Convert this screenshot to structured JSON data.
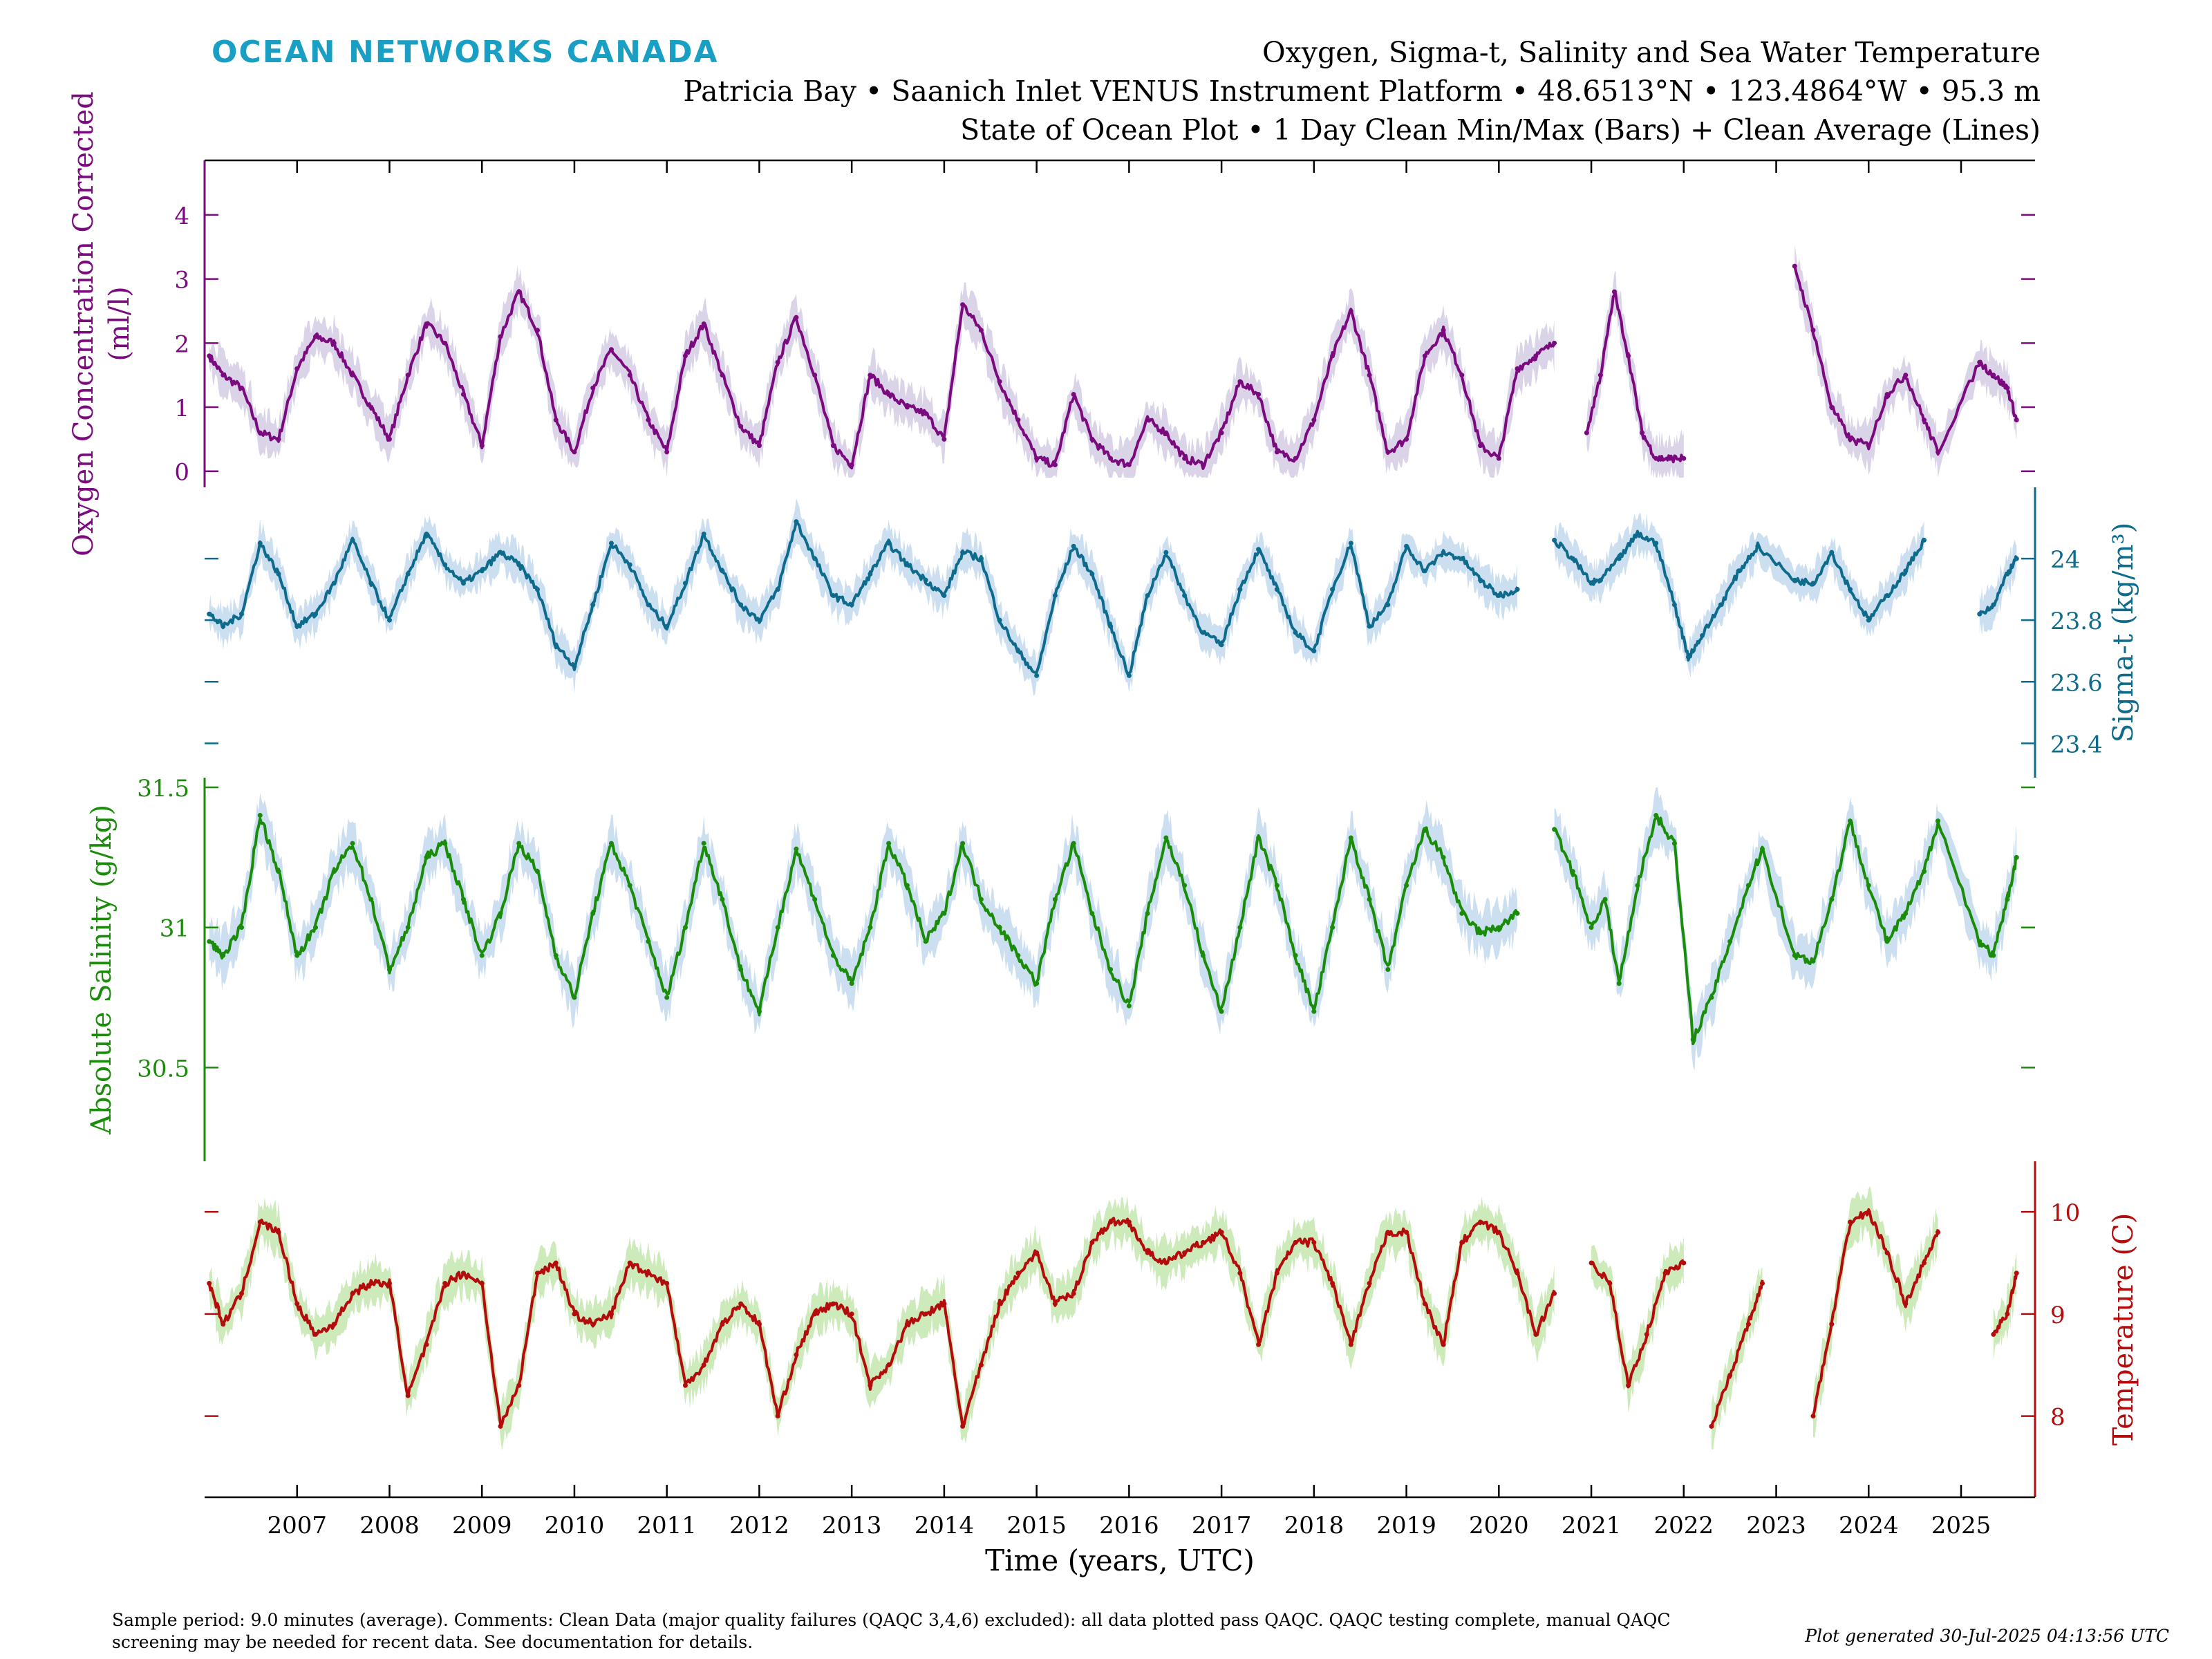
{
  "brand": {
    "name": "OCEAN NETWORKS CANADA",
    "color": "#1a9fc4"
  },
  "titles": {
    "line1": "Oxygen, Sigma-t, Salinity and Sea Water Temperature",
    "line2": "Patricia Bay • Saanich Inlet VENUS Instrument Platform • 48.6513°N • 123.4864°W • 95.3 m",
    "line3": "State of Ocean Plot • 1 Day Clean Min/Max (Bars) + Clean Average (Lines)"
  },
  "footer": {
    "comments": "Sample period: 9.0 minutes (average). Comments: Clean Data (major quality failures (QAQC 3,4,6) excluded): all data plotted pass QAQC. QAQC testing complete, manual QAQC screening may be needed for recent data. See documentation for details.",
    "generated": "Plot generated 30-Jul-2025 04:13:56 UTC"
  },
  "chart_data": {
    "type": "line",
    "xlabel": "Time (years, UTC)",
    "xlim": [
      2006.0,
      2025.8
    ],
    "x_ticks": [
      "2007",
      "2008",
      "2009",
      "2010",
      "2011",
      "2012",
      "2013",
      "2014",
      "2015",
      "2016",
      "2017",
      "2018",
      "2019",
      "2020",
      "2021",
      "2022",
      "2023",
      "2024",
      "2025"
    ],
    "panels": [
      {
        "name": "Oxygen Concentration Corrected",
        "ylabel": "Oxygen Concentration Corrected\n(ml/l)",
        "axis_side": "left",
        "color": "#7a0a7e",
        "band_color": "#d7cfe6",
        "ylim": [
          -0.1,
          4.7
        ],
        "yticks": [
          "0",
          "1",
          "2",
          "3",
          "4"
        ],
        "x": [
          2006.05,
          2006.2,
          2006.4,
          2006.6,
          2006.8,
          2007.0,
          2007.2,
          2007.4,
          2007.6,
          2007.8,
          2008.0,
          2008.2,
          2008.4,
          2008.6,
          2008.8,
          2009.0,
          2009.2,
          2009.4,
          2009.6,
          2009.8,
          2010.0,
          2010.2,
          2010.4,
          2010.6,
          2010.8,
          2011.0,
          2011.2,
          2011.4,
          2011.6,
          2011.8,
          2012.0,
          2012.2,
          2012.4,
          2012.6,
          2012.8,
          2013.0,
          2013.2,
          2013.4,
          2013.6,
          2013.8,
          2014.0,
          2014.2,
          2014.4,
          2014.6,
          2014.8,
          2015.0,
          2015.2,
          2015.4,
          2015.6,
          2015.8,
          2016.0,
          2016.2,
          2016.4,
          2016.6,
          2016.8,
          2017.0,
          2017.2,
          2017.4,
          2017.6,
          2017.8,
          2018.0,
          2018.2,
          2018.4,
          2018.6,
          2018.8,
          2019.0,
          2019.2,
          2019.4,
          2019.6,
          2019.8,
          2020.0,
          2020.2,
          2020.4,
          2020.6,
          2020.8,
          2020.95,
          2021.1,
          2021.25,
          2021.4,
          2021.55,
          2021.7,
          2021.85,
          2022.0,
          2022.15,
          2023.2,
          2023.4,
          2023.6,
          2023.8,
          2024.0,
          2024.2,
          2024.4,
          2024.6,
          2024.75,
          2025.2,
          2025.35,
          2025.5,
          2025.6
        ],
        "values": [
          1.8,
          1.5,
          1.3,
          0.6,
          0.5,
          1.6,
          2.1,
          2.0,
          1.5,
          1.0,
          0.5,
          1.5,
          2.3,
          2.0,
          1.2,
          0.4,
          2.1,
          2.8,
          2.2,
          0.8,
          0.3,
          1.3,
          1.9,
          1.5,
          0.8,
          0.3,
          1.8,
          2.3,
          1.5,
          0.7,
          0.4,
          1.7,
          2.4,
          1.5,
          0.4,
          0.1,
          1.5,
          1.2,
          1.0,
          0.9,
          0.5,
          2.6,
          2.2,
          1.4,
          0.8,
          0.2,
          0.1,
          1.2,
          0.5,
          0.2,
          0.1,
          0.8,
          0.6,
          0.2,
          0.1,
          0.6,
          1.4,
          1.2,
          0.3,
          0.2,
          0.8,
          1.8,
          2.5,
          1.5,
          0.3,
          0.5,
          1.8,
          2.2,
          1.5,
          0.4,
          0.2,
          1.6,
          1.8,
          2.0,
          null,
          0.6,
          1.5,
          2.8,
          1.8,
          0.6,
          0.2,
          0.2,
          0.2,
          null,
          3.2,
          2.2,
          1.0,
          0.5,
          0.4,
          1.2,
          1.5,
          0.8,
          0.3,
          1.7,
          1.5,
          1.3,
          0.8
        ]
      },
      {
        "name": "Sigma-t",
        "ylabel": "Sigma-t (kg/m³)",
        "axis_side": "right",
        "color": "#0e6b8c",
        "band_color": "#c6dcf0",
        "ylim": [
          23.32,
          24.2
        ],
        "yticks": [
          "23.4",
          "23.6",
          "23.8",
          "24"
        ],
        "x": [
          2006.05,
          2006.2,
          2006.4,
          2006.6,
          2006.8,
          2007.0,
          2007.2,
          2007.4,
          2007.6,
          2007.8,
          2008.0,
          2008.2,
          2008.4,
          2008.6,
          2008.8,
          2009.0,
          2009.2,
          2009.4,
          2009.6,
          2009.8,
          2010.0,
          2010.2,
          2010.4,
          2010.6,
          2010.8,
          2011.0,
          2011.2,
          2011.4,
          2011.6,
          2011.8,
          2012.0,
          2012.2,
          2012.4,
          2012.6,
          2012.8,
          2013.0,
          2013.2,
          2013.4,
          2013.6,
          2013.8,
          2014.0,
          2014.2,
          2014.4,
          2014.6,
          2014.8,
          2015.0,
          2015.2,
          2015.4,
          2015.6,
          2015.8,
          2016.0,
          2016.2,
          2016.4,
          2016.6,
          2016.8,
          2017.0,
          2017.2,
          2017.4,
          2017.6,
          2017.8,
          2018.0,
          2018.2,
          2018.4,
          2018.6,
          2018.8,
          2019.0,
          2019.2,
          2019.4,
          2019.6,
          2019.8,
          2020.0,
          2020.2,
          2020.4,
          2020.6,
          2020.8,
          2021.0,
          2021.1,
          2021.3,
          2021.5,
          2021.7,
          2021.9,
          2022.05,
          2022.2,
          2022.4,
          2022.6,
          2022.8,
          2023.2,
          2023.4,
          2023.6,
          2023.8,
          2024.0,
          2024.2,
          2024.4,
          2024.6,
          2024.75,
          2025.2,
          2025.35,
          2025.5,
          2025.6
        ],
        "values": [
          23.82,
          23.78,
          23.82,
          24.05,
          23.95,
          23.78,
          23.82,
          23.92,
          24.06,
          23.92,
          23.8,
          23.95,
          24.08,
          23.98,
          23.92,
          23.96,
          24.02,
          23.98,
          23.9,
          23.72,
          23.65,
          23.85,
          24.05,
          23.98,
          23.85,
          23.78,
          23.92,
          24.08,
          23.96,
          23.85,
          23.8,
          23.9,
          24.12,
          24.0,
          23.88,
          23.85,
          23.95,
          24.05,
          23.98,
          23.93,
          23.88,
          24.02,
          24.0,
          23.8,
          23.7,
          23.62,
          23.88,
          24.04,
          23.95,
          23.78,
          23.62,
          23.88,
          24.02,
          23.88,
          23.76,
          23.72,
          23.9,
          24.03,
          23.9,
          23.76,
          23.7,
          23.9,
          24.05,
          23.78,
          23.85,
          24.04,
          23.96,
          24.02,
          24.0,
          23.93,
          23.88,
          23.9,
          null,
          24.06,
          24.0,
          23.92,
          23.93,
          24.0,
          24.08,
          24.05,
          23.85,
          23.68,
          23.75,
          23.85,
          23.96,
          24.04,
          23.93,
          23.92,
          24.02,
          23.9,
          23.8,
          23.88,
          23.96,
          24.06,
          null,
          23.82,
          23.85,
          23.95,
          24.0
        ],
        "note": "gaps in the series appear as breaks"
      },
      {
        "name": "Absolute Salinity",
        "ylabel": "Absolute Salinity (g/kg)",
        "axis_side": "left",
        "color": "#1a8c0a",
        "band_color": "#c6dcf0",
        "ylim": [
          30.2,
          31.5
        ],
        "yticks": [
          "30.5",
          "31",
          "31.5"
        ],
        "x": [
          2006.05,
          2006.2,
          2006.4,
          2006.6,
          2006.8,
          2007.0,
          2007.2,
          2007.4,
          2007.6,
          2007.8,
          2008.0,
          2008.2,
          2008.4,
          2008.6,
          2008.8,
          2009.0,
          2009.2,
          2009.4,
          2009.6,
          2009.8,
          2010.0,
          2010.2,
          2010.4,
          2010.6,
          2010.8,
          2011.0,
          2011.2,
          2011.4,
          2011.6,
          2011.8,
          2012.0,
          2012.2,
          2012.4,
          2012.6,
          2012.8,
          2013.0,
          2013.2,
          2013.4,
          2013.6,
          2013.8,
          2014.0,
          2014.2,
          2014.4,
          2014.6,
          2014.8,
          2015.0,
          2015.2,
          2015.4,
          2015.6,
          2015.8,
          2016.0,
          2016.2,
          2016.4,
          2016.6,
          2016.8,
          2017.0,
          2017.2,
          2017.4,
          2017.6,
          2017.8,
          2018.0,
          2018.2,
          2018.4,
          2018.6,
          2018.8,
          2019.0,
          2019.2,
          2019.4,
          2019.6,
          2019.8,
          2020.0,
          2020.2,
          2020.4,
          2020.6,
          2020.8,
          2021.0,
          2021.15,
          2021.3,
          2021.5,
          2021.7,
          2021.9,
          2022.1,
          2022.3,
          2022.5,
          2022.7,
          2022.85,
          2023.2,
          2023.4,
          2023.6,
          2023.8,
          2024.0,
          2024.2,
          2024.4,
          2024.6,
          2024.75,
          2025.2,
          2025.35,
          2025.5,
          2025.6
        ],
        "values": [
          30.95,
          30.9,
          31.0,
          31.4,
          31.2,
          30.9,
          31.0,
          31.2,
          31.3,
          31.1,
          30.85,
          31.0,
          31.25,
          31.3,
          31.1,
          30.9,
          31.05,
          31.3,
          31.2,
          30.9,
          30.75,
          31.05,
          31.3,
          31.15,
          30.95,
          30.75,
          31.0,
          31.3,
          31.1,
          30.85,
          30.7,
          31.0,
          31.28,
          31.1,
          30.9,
          30.8,
          31.0,
          31.3,
          31.15,
          30.95,
          31.05,
          31.3,
          31.1,
          31.0,
          30.9,
          30.8,
          31.1,
          31.3,
          31.05,
          30.85,
          30.72,
          31.05,
          31.32,
          31.15,
          30.9,
          30.7,
          31.0,
          31.32,
          31.15,
          30.9,
          30.7,
          31.0,
          31.32,
          31.1,
          30.85,
          31.15,
          31.35,
          31.25,
          31.05,
          30.98,
          31.0,
          31.05,
          null,
          31.35,
          31.2,
          31.0,
          31.1,
          30.8,
          31.15,
          31.4,
          31.3,
          30.6,
          30.75,
          30.95,
          31.15,
          31.28,
          30.9,
          30.88,
          31.1,
          31.38,
          31.15,
          30.95,
          31.05,
          31.2,
          31.38,
          30.95,
          30.9,
          31.1,
          31.25
        ]
      },
      {
        "name": "Temperature",
        "ylabel": "Temperature (C)",
        "axis_side": "right",
        "color": "#b40c0c",
        "band_color": "#c8e8b4",
        "ylim": [
          7.3,
          10.4
        ],
        "yticks": [
          "8",
          "9",
          "10"
        ],
        "x": [
          2006.05,
          2006.2,
          2006.4,
          2006.6,
          2006.8,
          2007.0,
          2007.2,
          2007.4,
          2007.6,
          2007.8,
          2008.0,
          2008.2,
          2008.4,
          2008.6,
          2008.8,
          2009.0,
          2009.2,
          2009.4,
          2009.6,
          2009.8,
          2010.0,
          2010.2,
          2010.4,
          2010.6,
          2010.8,
          2011.0,
          2011.2,
          2011.4,
          2011.6,
          2011.8,
          2012.0,
          2012.2,
          2012.4,
          2012.6,
          2012.8,
          2013.0,
          2013.2,
          2013.4,
          2013.6,
          2013.8,
          2014.0,
          2014.2,
          2014.4,
          2014.6,
          2014.8,
          2015.0,
          2015.2,
          2015.4,
          2015.6,
          2015.8,
          2016.0,
          2016.2,
          2016.4,
          2016.6,
          2016.8,
          2017.0,
          2017.2,
          2017.4,
          2017.6,
          2017.8,
          2018.0,
          2018.2,
          2018.4,
          2018.6,
          2018.8,
          2019.0,
          2019.2,
          2019.4,
          2019.6,
          2019.8,
          2020.0,
          2020.2,
          2020.4,
          2020.6,
          2020.8,
          2021.0,
          2021.2,
          2021.4,
          2021.6,
          2021.8,
          2022.0,
          2022.15,
          2022.3,
          2022.5,
          2022.7,
          2022.85,
          2023.2,
          2023.4,
          2023.6,
          2023.8,
          2024.0,
          2024.2,
          2024.4,
          2024.6,
          2024.75,
          2025.2,
          2025.35,
          2025.5,
          2025.6
        ],
        "values": [
          9.3,
          8.9,
          9.2,
          9.9,
          9.8,
          9.1,
          8.8,
          8.9,
          9.2,
          9.3,
          9.3,
          8.2,
          8.7,
          9.3,
          9.4,
          9.3,
          7.9,
          8.3,
          9.4,
          9.5,
          9.0,
          8.9,
          9.0,
          9.5,
          9.4,
          9.3,
          8.3,
          8.5,
          8.9,
          9.1,
          8.9,
          8.0,
          8.6,
          9.0,
          9.1,
          9.0,
          8.3,
          8.5,
          8.9,
          9.0,
          9.1,
          7.9,
          8.5,
          9.1,
          9.4,
          9.6,
          9.1,
          9.2,
          9.7,
          9.9,
          9.9,
          9.6,
          9.5,
          9.6,
          9.7,
          9.8,
          9.4,
          8.7,
          9.4,
          9.7,
          9.7,
          9.3,
          8.7,
          9.3,
          9.8,
          9.8,
          9.1,
          8.7,
          9.7,
          9.9,
          9.8,
          9.4,
          8.8,
          9.2,
          null,
          9.5,
          9.3,
          8.3,
          8.8,
          9.4,
          9.5,
          null,
          7.9,
          8.4,
          8.9,
          9.3,
          null,
          8.0,
          8.9,
          9.9,
          10.0,
          9.6,
          9.1,
          9.5,
          9.8,
          null,
          8.8,
          9.0,
          9.4
        ]
      }
    ]
  }
}
